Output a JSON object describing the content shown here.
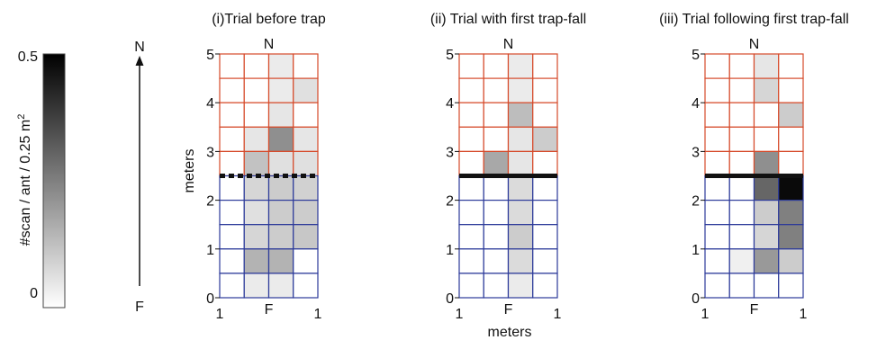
{
  "chart_data": {
    "type": "heatmap",
    "colorbar": {
      "label": "#scan / ant / 0.25 m",
      "label_superscript": "2",
      "min": 0,
      "max": 0.5,
      "tick_labels": [
        "0.5",
        "0"
      ],
      "colormap": [
        "#ffffff",
        "#000000"
      ]
    },
    "compass": {
      "north_label": "N",
      "south_label": "F"
    },
    "grid": {
      "rows": 10,
      "cols": 4,
      "north_color": "#d64a2a",
      "south_color": "#2c3a9a",
      "cell_size_m": 0.5
    },
    "shared": {
      "ylabel": "meters",
      "xlabel": "meters",
      "yticks": [
        "0",
        "1",
        "2",
        "3",
        "4",
        "5"
      ],
      "xtick_left": "1",
      "xtick_mid": "F",
      "xtick_right": "1",
      "top_label": "N"
    },
    "panels": [
      {
        "title": "(i)Trial before trap",
        "trap_y": 2.5,
        "trap_style": "dashed",
        "values": [
          [
            0.0,
            0.0,
            0.04,
            0.0
          ],
          [
            0.0,
            0.0,
            0.04,
            0.06
          ],
          [
            0.0,
            0.0,
            0.05,
            0.0
          ],
          [
            0.0,
            0.05,
            0.22,
            0.05
          ],
          [
            0.0,
            0.12,
            0.06,
            0.06
          ],
          [
            0.0,
            0.08,
            0.1,
            0.09
          ],
          [
            0.0,
            0.06,
            0.1,
            0.1
          ],
          [
            0.0,
            0.08,
            0.1,
            0.11
          ],
          [
            0.0,
            0.15,
            0.15,
            0.0
          ],
          [
            0.0,
            0.04,
            0.04,
            0.0
          ]
        ]
      },
      {
        "title": "(ii) Trial with first trap-fall",
        "trap_y": 2.5,
        "trap_style": "solid",
        "values": [
          [
            0.0,
            0.0,
            0.04,
            0.0
          ],
          [
            0.0,
            0.0,
            0.04,
            0.0
          ],
          [
            0.0,
            0.0,
            0.13,
            0.0
          ],
          [
            0.0,
            0.0,
            0.05,
            0.1
          ],
          [
            0.0,
            0.17,
            0.05,
            0.0
          ],
          [
            0.0,
            0.0,
            0.07,
            0.0
          ],
          [
            0.0,
            0.0,
            0.07,
            0.0
          ],
          [
            0.0,
            0.0,
            0.1,
            0.0
          ],
          [
            0.0,
            0.0,
            0.07,
            0.0
          ],
          [
            0.0,
            0.0,
            0.04,
            0.0
          ]
        ]
      },
      {
        "title": "(iii) Trial following first trap-fall",
        "trap_y": 2.5,
        "trap_style": "solid",
        "values": [
          [
            0.0,
            0.0,
            0.05,
            0.0
          ],
          [
            0.0,
            0.0,
            0.08,
            0.0
          ],
          [
            0.0,
            0.0,
            0.0,
            0.1
          ],
          [
            0.0,
            0.0,
            0.0,
            0.0
          ],
          [
            0.0,
            0.0,
            0.22,
            0.0
          ],
          [
            0.0,
            0.0,
            0.3,
            0.48
          ],
          [
            0.0,
            0.0,
            0.1,
            0.25
          ],
          [
            0.0,
            0.0,
            0.08,
            0.25
          ],
          [
            0.0,
            0.03,
            0.2,
            0.1
          ],
          [
            0.0,
            0.0,
            0.0,
            0.0
          ]
        ]
      }
    ]
  }
}
